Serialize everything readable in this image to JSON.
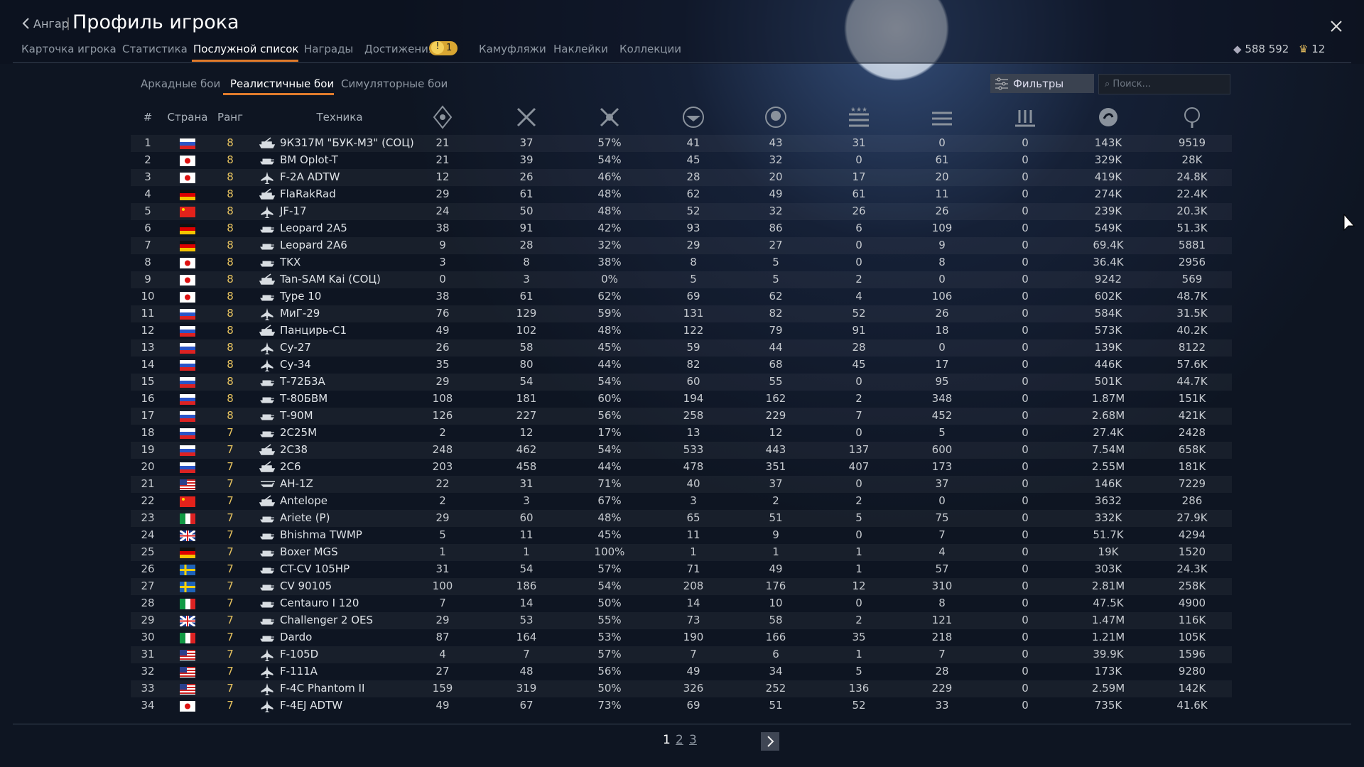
{
  "header": {
    "back": "Ангар",
    "title": "Профиль игрока"
  },
  "tabs": [
    "Карточка игрока",
    "Статистика",
    "Послужной список",
    "Награды",
    "Достижения",
    "Камуфляжи",
    "Наклейки",
    "Коллекции"
  ],
  "achievements_badge": "1",
  "currency": {
    "silver": "588 592",
    "gold": "12"
  },
  "mode_tabs": [
    "Аркадные бои",
    "Реалистичные бои",
    "Симуляторные бои"
  ],
  "filters": "Фильтры",
  "search_placeholder": "Поиск...",
  "table": {
    "headers": [
      "#",
      "Страна",
      "Ранг",
      "Техника"
    ],
    "rows": [
      [
        "1",
        "8",
        "9К317М \"БУК-М3\" (СОЦ)",
        "21",
        "37",
        "57%",
        "41",
        "43",
        "31",
        "0",
        "0",
        "143K",
        "9519"
      ],
      [
        "2",
        "8",
        "BM Oplot-T",
        "21",
        "39",
        "54%",
        "45",
        "32",
        "0",
        "61",
        "0",
        "329K",
        "28K"
      ],
      [
        "3",
        "8",
        "F-2A ADTW",
        "12",
        "26",
        "46%",
        "28",
        "20",
        "17",
        "20",
        "0",
        "419K",
        "24.8K"
      ],
      [
        "4",
        "8",
        "FlaRakRad",
        "29",
        "61",
        "48%",
        "62",
        "49",
        "61",
        "11",
        "0",
        "274K",
        "22.4K"
      ],
      [
        "5",
        "8",
        "JF-17",
        "24",
        "50",
        "48%",
        "52",
        "32",
        "26",
        "26",
        "0",
        "239K",
        "20.3K"
      ],
      [
        "6",
        "8",
        "Leopard 2A5",
        "38",
        "91",
        "42%",
        "93",
        "86",
        "6",
        "109",
        "0",
        "549K",
        "51.3K"
      ],
      [
        "7",
        "8",
        "Leopard 2A6",
        "9",
        "28",
        "32%",
        "29",
        "27",
        "0",
        "9",
        "0",
        "69.4K",
        "5881"
      ],
      [
        "8",
        "8",
        "TKX",
        "3",
        "8",
        "38%",
        "8",
        "5",
        "0",
        "8",
        "0",
        "36.4K",
        "2956"
      ],
      [
        "9",
        "8",
        "Tan-SAM Kai (СОЦ)",
        "0",
        "3",
        "0%",
        "5",
        "5",
        "2",
        "0",
        "0",
        "9242",
        "569"
      ],
      [
        "10",
        "8",
        "Type 10",
        "38",
        "61",
        "62%",
        "69",
        "62",
        "4",
        "106",
        "0",
        "602K",
        "48.7K"
      ],
      [
        "11",
        "8",
        "МиГ-29",
        "76",
        "129",
        "59%",
        "131",
        "82",
        "52",
        "26",
        "0",
        "584K",
        "31.5K"
      ],
      [
        "12",
        "8",
        "Панцирь-С1",
        "49",
        "102",
        "48%",
        "122",
        "79",
        "91",
        "18",
        "0",
        "573K",
        "40.2K"
      ],
      [
        "13",
        "8",
        "Су-27",
        "26",
        "58",
        "45%",
        "59",
        "44",
        "28",
        "0",
        "0",
        "139K",
        "8122"
      ],
      [
        "14",
        "8",
        "Су-34",
        "35",
        "80",
        "44%",
        "82",
        "68",
        "45",
        "17",
        "0",
        "446K",
        "57.6K"
      ],
      [
        "15",
        "8",
        "Т-72Б3А",
        "29",
        "54",
        "54%",
        "60",
        "55",
        "0",
        "95",
        "0",
        "501K",
        "44.7K"
      ],
      [
        "16",
        "8",
        "Т-80БВМ",
        "108",
        "181",
        "60%",
        "194",
        "162",
        "2",
        "348",
        "0",
        "1.87M",
        "151K"
      ],
      [
        "17",
        "8",
        "Т-90М",
        "126",
        "227",
        "56%",
        "258",
        "229",
        "7",
        "452",
        "0",
        "2.68M",
        "421K"
      ],
      [
        "18",
        "7",
        "2С25М",
        "2",
        "12",
        "17%",
        "13",
        "12",
        "0",
        "5",
        "0",
        "27.4K",
        "2428"
      ],
      [
        "19",
        "7",
        "2С38",
        "248",
        "462",
        "54%",
        "533",
        "443",
        "137",
        "600",
        "0",
        "7.54M",
        "658K"
      ],
      [
        "20",
        "7",
        "2С6",
        "203",
        "458",
        "44%",
        "478",
        "351",
        "407",
        "173",
        "0",
        "2.55M",
        "181K"
      ],
      [
        "21",
        "7",
        "AH-1Z",
        "22",
        "31",
        "71%",
        "40",
        "37",
        "0",
        "37",
        "0",
        "146K",
        "7229"
      ],
      [
        "22",
        "7",
        "Antelope",
        "2",
        "3",
        "67%",
        "3",
        "2",
        "2",
        "0",
        "0",
        "3632",
        "286"
      ],
      [
        "23",
        "7",
        "Ariete (P)",
        "29",
        "60",
        "48%",
        "65",
        "51",
        "5",
        "75",
        "0",
        "332K",
        "27.9K"
      ],
      [
        "24",
        "7",
        "Bhishma TWMP",
        "5",
        "11",
        "45%",
        "11",
        "9",
        "0",
        "7",
        "0",
        "51.7K",
        "4294"
      ],
      [
        "25",
        "7",
        "Boxer MGS",
        "1",
        "1",
        "100%",
        "1",
        "1",
        "1",
        "4",
        "0",
        "19K",
        "1520"
      ],
      [
        "26",
        "7",
        "CT-CV 105HP",
        "31",
        "54",
        "57%",
        "71",
        "49",
        "1",
        "57",
        "0",
        "303K",
        "24.3K"
      ],
      [
        "27",
        "7",
        "CV 90105",
        "100",
        "186",
        "54%",
        "208",
        "176",
        "12",
        "310",
        "0",
        "2.81M",
        "258K"
      ],
      [
        "28",
        "7",
        "Centauro I 120",
        "7",
        "14",
        "50%",
        "14",
        "10",
        "0",
        "8",
        "0",
        "47.5K",
        "4900"
      ],
      [
        "29",
        "7",
        "Challenger 2 OES",
        "29",
        "53",
        "55%",
        "73",
        "58",
        "2",
        "121",
        "0",
        "1.47M",
        "116K"
      ],
      [
        "30",
        "7",
        "Dardo",
        "87",
        "164",
        "53%",
        "190",
        "166",
        "35",
        "218",
        "0",
        "1.21M",
        "105K"
      ],
      [
        "31",
        "7",
        "F-105D",
        "4",
        "7",
        "57%",
        "7",
        "6",
        "1",
        "7",
        "0",
        "39.9K",
        "1596"
      ],
      [
        "32",
        "7",
        "F-111A",
        "27",
        "48",
        "56%",
        "49",
        "34",
        "5",
        "28",
        "0",
        "173K",
        "9280"
      ],
      [
        "33",
        "7",
        "F-4C Phantom II",
        "159",
        "319",
        "50%",
        "326",
        "252",
        "136",
        "229",
        "0",
        "2.59M",
        "142K"
      ],
      [
        "34",
        "7",
        "F-4EJ ADTW",
        "49",
        "67",
        "73%",
        "69",
        "51",
        "52",
        "33",
        "0",
        "735K",
        "41.6K"
      ]
    ]
  },
  "pagination": [
    "1",
    "2",
    "3"
  ]
}
